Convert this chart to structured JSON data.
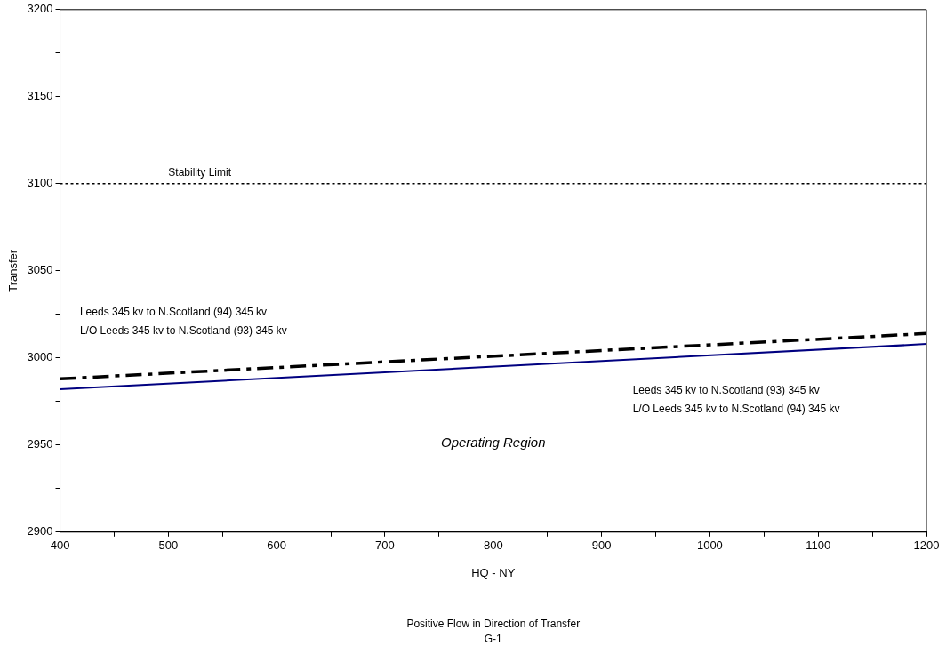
{
  "chart_data": {
    "type": "line",
    "xlabel": "HQ - NY",
    "ylabel": "Transfer",
    "x": [
      400,
      1200
    ],
    "series": [
      {
        "color": "#000000",
        "values": [
          2988,
          3014
        ],
        "line_style": "dashed"
      },
      {
        "color": "#000080",
        "values": [
          2982,
          3008
        ],
        "line_style": "solid"
      }
    ],
    "xlim": [
      400,
      1200
    ],
    "ylim": [
      2900,
      3200
    ],
    "xticks": [
      400,
      {
        "value": 450,
        "label": null
      },
      500,
      {
        "value": 550,
        "label": null
      },
      600,
      {
        "value": 650,
        "label": null
      },
      700,
      {
        "value": 750,
        "label": null
      },
      800,
      {
        "value": 850,
        "label": null
      },
      900,
      {
        "value": 950,
        "label": null
      },
      1000,
      {
        "value": 1050,
        "label": null
      },
      1100,
      {
        "value": 1150,
        "label": null
      },
      1200
    ],
    "yticks": [
      2900,
      {
        "value": 2925,
        "label": null
      },
      2950,
      {
        "value": 2975,
        "label": null
      },
      3000,
      {
        "value": 3025,
        "label": null
      },
      3050,
      {
        "value": 3075,
        "label": null
      },
      3100,
      {
        "value": 3125,
        "label": null
      },
      3150,
      {
        "value": 3175,
        "label": null
      },
      3200
    ],
    "ref_lines": [
      {
        "axis": "y",
        "value": 3100,
        "label": "Stability Limit",
        "color": "#000000",
        "line_style": "dotted"
      }
    ],
    "grid": false,
    "legend": false,
    "marker": "none",
    "annotations": [
      "Leeds 345 kv to N.Scotland (94) 345 kv",
      "L/O Leeds 345 kv to N.Scotland (93) 345 kv",
      "Leeds 345 kv to N.Scotland (93) 345 kv",
      "L/O Leeds 345 kv to N.Scotland (94) 345 kv",
      "Operating Region",
      "Positive Flow in Direction of Transfer",
      "G-1"
    ]
  }
}
